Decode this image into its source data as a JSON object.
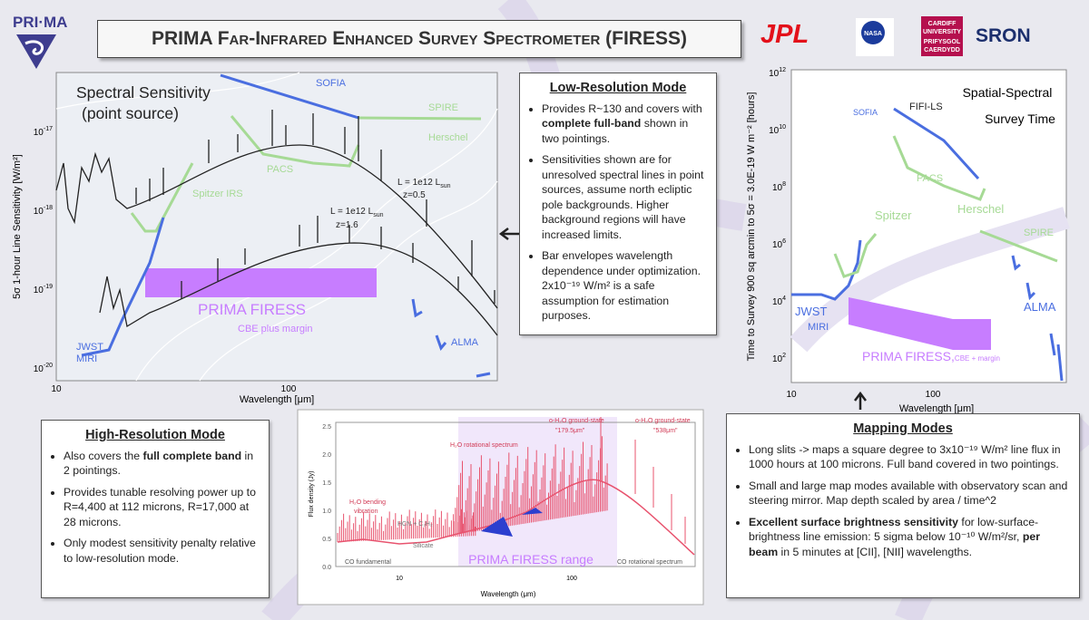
{
  "header": {
    "logo": "PRI·MA",
    "title": "PRIMA Far-Infrared Enhanced Survey Spectrometer (FIRESS)",
    "partners": {
      "jpl": "JPL",
      "nasa": "NASA",
      "cardiff": [
        "CARDIFF",
        "UNIVERSITY",
        "PRIFYSGOL",
        "CAERDYDD"
      ],
      "sron": "SRON"
    }
  },
  "spectral_sensitivity": {
    "title": [
      "Spectral Sensitivity",
      "(point source)"
    ],
    "y_label": "5σ 1-hour Line Sensitivity [W/m²]",
    "x_label": "Wavelength [μm]",
    "yticks": [
      {
        "base": "10",
        "exp": "-17"
      },
      {
        "base": "10",
        "exp": "-18"
      },
      {
        "base": "10",
        "exp": "-19"
      },
      {
        "base": "10",
        "exp": "-20"
      }
    ],
    "xticks": [
      "10",
      "100"
    ],
    "labels": {
      "sofia": "SOFIA",
      "spire": "SPIRE",
      "herschel": "Herschel",
      "pacs": "PACS",
      "spitzer": "Spitzer IRS",
      "jwst": [
        "JWST",
        "MIRI"
      ],
      "alma": "ALMA",
      "prima": "PRIMA FIRESS",
      "cbe": "CBE plus margin",
      "z05": {
        "l": "L = 1e12 L",
        "sun": "sun",
        "z": "z=0.5"
      },
      "z16": {
        "l": "L = 1e12 L",
        "sun": "sun",
        "z": "z=1.6"
      }
    }
  },
  "low_res": {
    "title": "Low-Resolution Mode",
    "bullets": [
      [
        "Provides R~130 and covers with ",
        "complete full-band",
        " shown in two pointings."
      ],
      [
        "Sensitivities shown are for unresolved spectral lines in point sources, assume north ecliptic pole backgrounds.  Higher background regions will have increased limits."
      ],
      [
        "Bar envelopes wavelength dependence under optimization.  2x10⁻¹⁹ W/m² is a safe assumption for estimation purposes."
      ]
    ]
  },
  "survey_time": {
    "title": [
      "Spatial-Spectral",
      "Survey Time"
    ],
    "y_label": "Time to Survey 900 sq arcmin to 5σ = 3.0E-19 W m⁻² [hours]",
    "x_label": "Wavelength [μm]",
    "yticks": [
      {
        "base": "10",
        "exp": "12"
      },
      {
        "base": "10",
        "exp": "10"
      },
      {
        "base": "10",
        "exp": "8"
      },
      {
        "base": "10",
        "exp": "6"
      },
      {
        "base": "10",
        "exp": "4"
      },
      {
        "base": "10",
        "exp": "2"
      }
    ],
    "xticks": [
      "10",
      "100"
    ],
    "labels": {
      "sofia": "SOFIA",
      "fifi": "FIFI-LS",
      "pacs": "PACS",
      "spitzer": "Spitzer",
      "herschel": "Herschel",
      "spire": "SPIRE",
      "jwst": [
        "JWST",
        "MIRI"
      ],
      "alma": "ALMA",
      "prima": "PRIMA FIRESS,",
      "cbe": "CBE + margin"
    }
  },
  "high_res": {
    "title": "High-Resolution Mode",
    "bullets": [
      [
        "Also covers the ",
        "full complete band",
        " in 2 pointings."
      ],
      [
        "Provides tunable resolving power up to R=4,400 at 112 microns, R=17,000 at 28 microns."
      ],
      [
        "Only modest sensitivity penalty relative to low-resolution mode."
      ]
    ]
  },
  "spectrum": {
    "y_label": "Flux density (Jy)",
    "x_label": "Wavelength (μm)",
    "yticks": [
      "2.5",
      "2.0",
      "1.5",
      "1.0",
      "0.5",
      "0.0"
    ],
    "xticks": [
      "10",
      "100"
    ],
    "labels": {
      "h2o_bend": [
        "H₂O bending",
        "vibration"
      ],
      "hcn": "HCN + C₂H₂",
      "silicate": "Silicate",
      "h2o_rot": "H₂O rotational spectrum",
      "oh2o_179": [
        "o-H₂O ground-state",
        "\"179.5μm\""
      ],
      "oh2o_538": [
        "o-H₂O ground-state",
        "\"538μm\""
      ],
      "co_fund": "CO fundamental",
      "co_rot": "CO rotational spectrum",
      "prima": "PRIMA FIRESS range"
    }
  },
  "mapping": {
    "title": "Mapping Modes",
    "bullets": [
      [
        "Long slits -> maps a square degree to 3x10⁻¹⁹ W/m² line flux in 1000 hours at 100 microns.   Full band covered in two pointings."
      ],
      [
        "Small and large map modes available with observatory scan and steering mirror.  Map depth scaled by area / time^2"
      ],
      [
        "",
        "Excellent surface brightness sensitivity",
        " for low-surface-brightness line emission:  5 sigma below 10⁻¹⁰ W/m²/sr, ",
        "per beam",
        " in 5 minutes at [CII], [NII] wavelengths."
      ]
    ]
  }
}
